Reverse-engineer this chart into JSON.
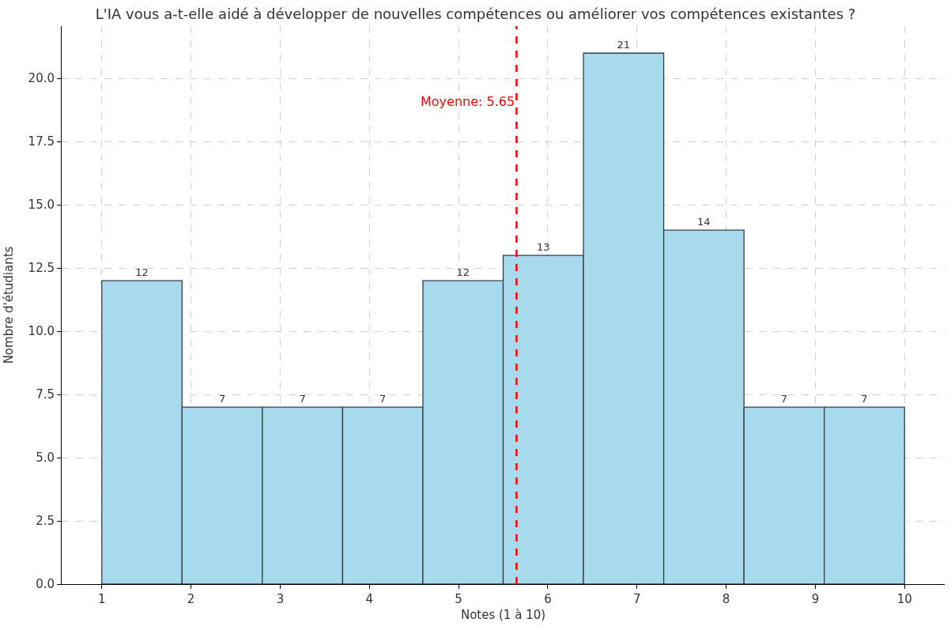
{
  "chart_data": {
    "type": "histogram",
    "title": "L'IA vous a-t-elle aidé à développer de nouvelles compétences ou améliorer vos compétences existantes ?",
    "xlabel": "Notes (1 à 10)",
    "ylabel": "Nombre d'étudiants",
    "bins": [
      1,
      1.9,
      2.8,
      3.7,
      4.6,
      5.5,
      6.4,
      7.3,
      8.2,
      9.1,
      10
    ],
    "values": [
      12,
      7,
      7,
      7,
      12,
      13,
      21,
      14,
      7,
      7
    ],
    "color": "#a8daed",
    "data_labels": true,
    "xlim": [
      0.55,
      10.45
    ],
    "xticks": [
      1,
      2,
      3,
      4,
      5,
      6,
      7,
      8,
      9,
      10
    ],
    "ylim": [
      0,
      22.07
    ],
    "yticks": [
      {
        "value": 0,
        "label": "0.0"
      },
      {
        "value": 2.5,
        "label": "2.5"
      },
      {
        "value": 5,
        "label": "5.0"
      },
      {
        "value": 7.5,
        "label": "7.5"
      },
      {
        "value": 10,
        "label": "10.0"
      },
      {
        "value": 12.5,
        "label": "12.5"
      },
      {
        "value": 15,
        "label": "15.0"
      },
      {
        "value": 17.5,
        "label": "17.5"
      },
      {
        "value": 20,
        "label": "20.0"
      }
    ],
    "grid": true,
    "ref_lines": [
      {
        "axis": "x",
        "value": 5.65,
        "label": "Moyenne: 5.65",
        "color": "#ff0000",
        "line_style": "dashed"
      }
    ]
  }
}
